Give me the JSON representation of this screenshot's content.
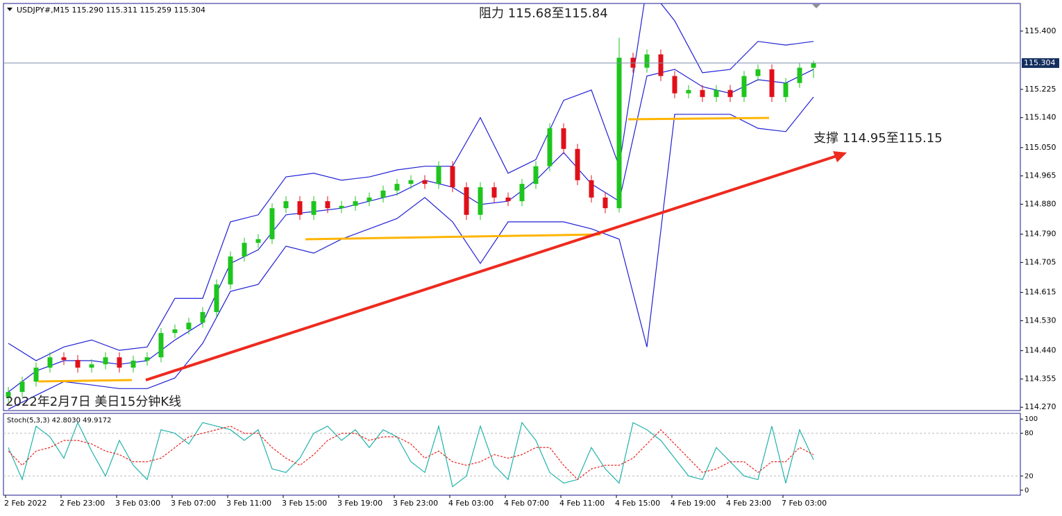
{
  "chart_data": [
    {
      "type": "candlestick",
      "title": "USDJPY#,M15  115.290 115.311 115.259 115.304",
      "annotations": [
        "阻力 115.68至115.84",
        "支撑 114.95至115.15",
        "2022年2月7日 美日15分钟K线"
      ],
      "open": [
        114.3,
        114.316,
        114.347,
        114.389,
        114.42,
        114.412,
        114.389,
        114.399,
        114.42,
        114.389,
        114.41,
        114.42,
        114.493,
        114.504,
        114.524,
        114.556,
        114.639,
        114.723,
        114.764,
        114.775,
        114.868,
        114.889,
        114.848,
        114.889,
        114.868,
        114.875,
        114.889,
        114.9,
        114.921,
        114.941,
        114.952,
        114.941,
        114.994,
        114.931,
        114.848,
        114.931,
        114.9,
        114.889,
        114.941,
        114.994,
        115.108,
        115.046,
        114.952,
        114.9,
        114.868,
        115.32,
        115.29,
        115.33,
        115.265,
        115.213,
        115.223,
        115.202,
        115.223,
        115.202,
        115.265,
        115.285,
        115.202,
        115.244,
        115.29
      ],
      "high": [
        114.331,
        114.362,
        114.404,
        114.435,
        114.435,
        114.427,
        114.414,
        114.435,
        114.435,
        114.425,
        114.435,
        114.508,
        114.519,
        114.539,
        114.571,
        114.654,
        114.738,
        114.779,
        114.79,
        114.883,
        114.904,
        114.904,
        114.904,
        114.904,
        114.89,
        114.904,
        114.915,
        114.936,
        114.956,
        114.967,
        114.967,
        115.009,
        115.009,
        114.946,
        114.946,
        114.946,
        114.915,
        114.956,
        115.009,
        115.123,
        115.123,
        115.061,
        114.967,
        114.915,
        115.38,
        115.335,
        115.345,
        115.345,
        115.28,
        115.238,
        115.238,
        115.238,
        115.238,
        115.28,
        115.3,
        115.3,
        115.259,
        115.305,
        115.311
      ],
      "low": [
        114.285,
        114.301,
        114.332,
        114.374,
        114.397,
        114.374,
        114.374,
        114.384,
        114.374,
        114.374,
        114.395,
        114.405,
        114.478,
        114.489,
        114.509,
        114.541,
        114.624,
        114.708,
        114.749,
        114.76,
        114.853,
        114.833,
        114.833,
        114.853,
        114.853,
        114.86,
        114.874,
        114.885,
        114.906,
        114.926,
        114.926,
        114.926,
        114.916,
        114.833,
        114.833,
        114.885,
        114.874,
        114.874,
        114.926,
        114.979,
        115.031,
        114.937,
        114.885,
        114.853,
        114.855,
        115.275,
        115.275,
        115.25,
        115.198,
        115.198,
        115.187,
        115.187,
        115.187,
        115.187,
        115.25,
        115.187,
        115.187,
        115.229,
        115.259
      ],
      "close": [
        114.316,
        114.347,
        114.389,
        114.42,
        114.412,
        114.389,
        114.399,
        114.42,
        114.389,
        114.41,
        114.42,
        114.493,
        114.504,
        114.524,
        114.556,
        114.639,
        114.723,
        114.764,
        114.775,
        114.868,
        114.889,
        114.848,
        114.889,
        114.868,
        114.875,
        114.889,
        114.9,
        114.921,
        114.941,
        114.952,
        114.941,
        114.994,
        114.931,
        114.848,
        114.931,
        114.9,
        114.889,
        114.941,
        114.994,
        115.108,
        115.046,
        114.952,
        114.9,
        114.868,
        115.32,
        115.29,
        115.33,
        115.265,
        115.213,
        115.223,
        115.202,
        115.223,
        115.202,
        115.265,
        115.285,
        115.202,
        115.244,
        115.29,
        115.304
      ],
      "up_color": "#1ec51e",
      "down_color": "#e0101a",
      "bands": {
        "color": "#1f1fd6",
        "x": [
          0,
          2,
          4,
          6,
          8,
          10,
          12,
          14,
          16,
          18,
          20,
          22,
          24,
          26,
          28,
          30,
          32,
          34,
          36,
          38,
          40,
          42,
          44,
          46,
          48,
          50,
          52,
          54,
          56,
          58
        ],
        "upper": [
          114.462,
          114.41,
          114.451,
          114.472,
          114.441,
          114.451,
          114.597,
          114.597,
          114.827,
          114.848,
          114.962,
          114.973,
          114.952,
          114.962,
          114.983,
          114.994,
          114.994,
          115.14,
          114.973,
          115.014,
          115.192,
          115.223,
          114.994,
          115.536,
          115.431,
          115.275,
          115.285,
          115.369,
          115.358,
          115.369
        ],
        "middle": [
          114.316,
          114.379,
          114.41,
          114.41,
          114.399,
          114.41,
          114.472,
          114.524,
          114.702,
          114.743,
          114.848,
          114.858,
          114.868,
          114.889,
          114.91,
          114.952,
          114.931,
          114.879,
          114.889,
          114.952,
          115.035,
          114.941,
          114.889,
          115.265,
          115.285,
          115.233,
          115.213,
          115.254,
          115.244,
          115.285
        ],
        "lower": [
          114.264,
          114.306,
          114.347,
          114.337,
          114.326,
          114.326,
          114.358,
          114.462,
          114.618,
          114.639,
          114.754,
          114.733,
          114.775,
          114.806,
          114.837,
          114.9,
          114.827,
          114.702,
          114.827,
          114.827,
          114.827,
          114.806,
          114.775,
          114.451,
          115.15,
          115.15,
          115.15,
          115.108,
          115.098,
          115.202
        ]
      },
      "last_price": {
        "value": 115.304,
        "label": "115.304"
      },
      "ylim": [
        114.26,
        115.483
      ],
      "yticks": [
        {
          "value": 115.4,
          "label": "115.400"
        },
        {
          "value": 115.225,
          "label": "115.225"
        },
        {
          "value": 115.14,
          "label": "115.140"
        },
        {
          "value": 115.05,
          "label": "115.050"
        },
        {
          "value": 114.965,
          "label": "114.965"
        },
        {
          "value": 114.88,
          "label": "114.880"
        },
        {
          "value": 114.79,
          "label": "114.790"
        },
        {
          "value": 114.705,
          "label": "114.705"
        },
        {
          "value": 114.615,
          "label": "114.615"
        },
        {
          "value": 114.53,
          "label": "114.530"
        },
        {
          "value": 114.44,
          "label": "114.440"
        },
        {
          "value": 114.355,
          "label": "114.355"
        },
        {
          "value": 114.27,
          "label": "114.270"
        }
      ]
    },
    {
      "type": "stochastic",
      "title": "Stoch(5,3,3) 42.8030 49.9172",
      "series": [
        {
          "color": "#20b2aa",
          "values": [
            60,
            15,
            90,
            75,
            45,
            95,
            55,
            20,
            70,
            35,
            15,
            85,
            80,
            65,
            95,
            90,
            85,
            70,
            85,
            30,
            25,
            45,
            80,
            90,
            70,
            85,
            60,
            85,
            75,
            40,
            25,
            90,
            5,
            20,
            90,
            35,
            15,
            95,
            70,
            25,
            10,
            15,
            60,
            30,
            10,
            95,
            85,
            70,
            45,
            20,
            15,
            60,
            40,
            20,
            15,
            90,
            10,
            85,
            42.803
          ]
        },
        {
          "color": "#e8231e",
          "dashed": true,
          "values": [
            55,
            35,
            55,
            60,
            70,
            70,
            65,
            55,
            50,
            40,
            40,
            45,
            60,
            75,
            80,
            85,
            90,
            80,
            80,
            60,
            45,
            35,
            50,
            70,
            80,
            80,
            70,
            75,
            75,
            65,
            45,
            55,
            40,
            35,
            40,
            50,
            45,
            50,
            60,
            60,
            35,
            15,
            30,
            35,
            35,
            45,
            65,
            85,
            65,
            45,
            25,
            30,
            40,
            40,
            25,
            40,
            40,
            60,
            49.917
          ]
        }
      ],
      "levels": [
        80,
        20
      ],
      "ylim": [
        -7,
        108
      ],
      "yticks": [
        100,
        80,
        20,
        0
      ],
      "xticks": [
        {
          "value": 0,
          "label": "2 Feb 2022"
        },
        {
          "value": 4,
          "label": "2 Feb 23:00"
        },
        {
          "value": 8,
          "label": "3 Feb 03:00"
        },
        {
          "value": 12,
          "label": "3 Feb 07:00"
        },
        {
          "value": 16,
          "label": "3 Feb 11:00"
        },
        {
          "value": 20,
          "label": "3 Feb 15:00"
        },
        {
          "value": 24,
          "label": "3 Feb 19:00"
        },
        {
          "value": 28,
          "label": "3 Feb 23:00"
        },
        {
          "value": 32,
          "label": "4 Feb 03:00"
        },
        {
          "value": 36,
          "label": "4 Feb 07:00"
        },
        {
          "value": 40,
          "label": "4 Feb 11:00"
        },
        {
          "value": 44,
          "label": "4 Feb 15:00"
        },
        {
          "value": 48,
          "label": "4 Feb 19:00"
        },
        {
          "value": 52,
          "label": "4 Feb 23:00"
        },
        {
          "value": 56,
          "label": "7 Feb 03:00"
        }
      ]
    }
  ]
}
